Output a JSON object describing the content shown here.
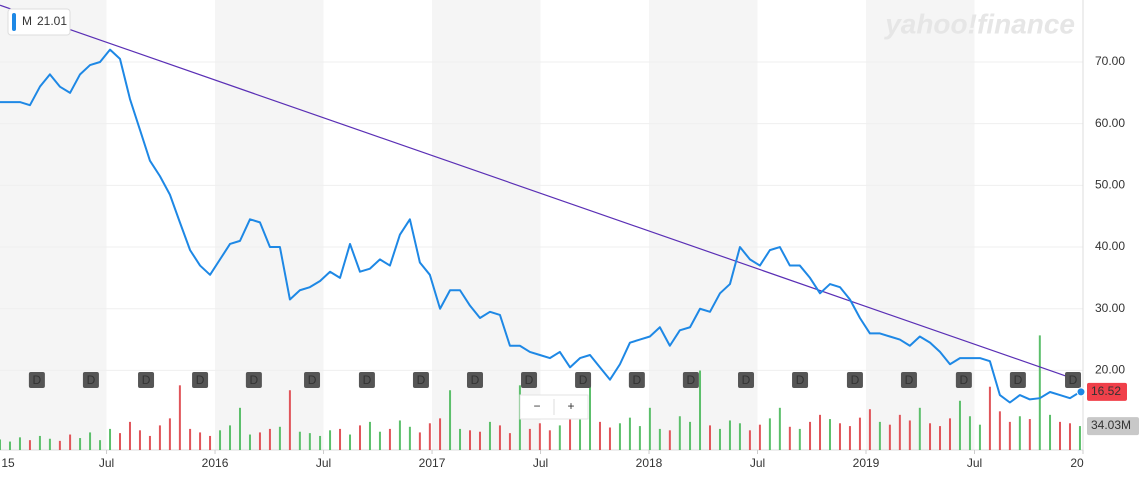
{
  "chart_data": {
    "type": "line",
    "watermark": "yahoo!finance",
    "legend_value": 21.01,
    "xlim": [
      2015.009,
      2020.0
    ],
    "xticks": [
      {
        "value": 2015,
        "label": "15"
      },
      {
        "value": 2015.5,
        "label": "Jul"
      },
      2016,
      {
        "value": 2016.5,
        "label": "Jul"
      },
      2017,
      {
        "value": 2017.5,
        "label": "Jul"
      },
      2018,
      {
        "value": 2018.5,
        "label": "Jul"
      },
      2019,
      {
        "value": 2019.5,
        "label": "Jul"
      },
      {
        "value": 2020,
        "label": "20"
      }
    ],
    "ylim": [
      7.1,
      80.05
    ],
    "yticks": [
      {
        "value": 20,
        "label": "20.00"
      },
      {
        "value": 30,
        "label": "30.00"
      },
      {
        "value": 40,
        "label": "40.00"
      },
      {
        "value": 50,
        "label": "50.00"
      },
      {
        "value": 60,
        "label": "60.00"
      },
      {
        "value": 70,
        "label": "70.00"
      }
    ],
    "y2lim": [
      0,
      640
    ],
    "grid": true,
    "x": [
      2015.009,
      2015.055,
      2015.101,
      2015.147,
      2015.193,
      2015.239,
      2015.285,
      2015.332,
      2015.378,
      2015.424,
      2015.47,
      2015.516,
      2015.562,
      2015.608,
      2015.654,
      2015.7,
      2015.746,
      2015.792,
      2015.838,
      2015.885,
      2015.931,
      2015.977,
      2016.023,
      2016.069,
      2016.115,
      2016.161,
      2016.207,
      2016.253,
      2016.299,
      2016.345,
      2016.391,
      2016.437,
      2016.484,
      2016.53,
      2016.576,
      2016.622,
      2016.668,
      2016.714,
      2016.76,
      2016.806,
      2016.852,
      2016.898,
      2016.944,
      2016.99,
      2017.037,
      2017.083,
      2017.129,
      2017.175,
      2017.221,
      2017.267,
      2017.313,
      2017.359,
      2017.405,
      2017.451,
      2017.497,
      2017.543,
      2017.589,
      2017.636,
      2017.682,
      2017.728,
      2017.774,
      2017.82,
      2017.866,
      2017.912,
      2017.958,
      2018.004,
      2018.05,
      2018.096,
      2018.142,
      2018.189,
      2018.235,
      2018.281,
      2018.327,
      2018.373,
      2018.419,
      2018.465,
      2018.511,
      2018.557,
      2018.603,
      2018.649,
      2018.695,
      2018.742,
      2018.788,
      2018.834,
      2018.88,
      2018.926,
      2018.972,
      2019.018,
      2019.064,
      2019.11,
      2019.156,
      2019.202,
      2019.248,
      2019.295,
      2019.341,
      2019.387,
      2019.433,
      2019.479,
      2019.525,
      2019.571,
      2019.617,
      2019.663,
      2019.709,
      2019.755,
      2019.801,
      2019.848,
      2019.894,
      2019.94,
      2019.986
    ],
    "series": [
      {
        "name": "M",
        "color": "#1e88e5",
        "values": [
          63.5,
          63.5,
          63.5,
          63,
          66,
          68,
          66,
          65,
          68,
          69.5,
          70,
          72,
          70.5,
          64,
          59,
          54,
          51.5,
          48.5,
          44,
          39.5,
          37,
          35.5,
          38,
          40.5,
          41,
          44.5,
          44,
          40,
          40,
          31.5,
          33,
          33.5,
          34.5,
          36,
          35,
          40.5,
          36,
          36.5,
          38,
          37,
          42,
          44.5,
          37.5,
          35.5,
          30,
          33,
          33,
          30.5,
          28.5,
          29.5,
          29,
          24,
          24,
          23,
          22.5,
          22,
          23,
          20.5,
          22,
          22.5,
          20.5,
          18.5,
          21,
          24.5,
          25,
          25.5,
          27,
          24,
          26.5,
          27,
          30,
          29.5,
          32.5,
          34,
          40,
          38,
          37,
          39.5,
          40,
          37,
          37,
          35,
          32.5,
          34,
          33.5,
          31.5,
          28.5,
          26,
          26,
          25.5,
          25,
          24,
          25.5,
          24.5,
          23,
          21,
          22,
          22,
          22,
          21.5,
          16,
          14.8,
          16,
          15.3,
          15.5,
          16.5,
          16,
          15.5,
          16.5
        ]
      },
      {
        "name": "Volume",
        "axis": "y2",
        "up_color": "#5cbf6b",
        "down_color": "#e0555a",
        "values": [
          15,
          12,
          18,
          14,
          20,
          16,
          13,
          22,
          17,
          25,
          14,
          30,
          24,
          40,
          28,
          20,
          35,
          45,
          92,
          30,
          25,
          20,
          28,
          35,
          60,
          22,
          25,
          30,
          33,
          85,
          26,
          24,
          20,
          28,
          30,
          22,
          35,
          40,
          26,
          30,
          42,
          33,
          25,
          38,
          45,
          85,
          30,
          28,
          26,
          40,
          35,
          24,
          92,
          30,
          38,
          28,
          35,
          55,
          60,
          106,
          40,
          32,
          38,
          46,
          34,
          60,
          30,
          28,
          48,
          40,
          113,
          35,
          30,
          42,
          38,
          28,
          36,
          45,
          60,
          33,
          30,
          40,
          50,
          44,
          38,
          34,
          46,
          58,
          40,
          36,
          50,
          42,
          60,
          38,
          34,
          45,
          70,
          48,
          36,
          90,
          55,
          40,
          48,
          44,
          163,
          50,
          40,
          38,
          34.03
        ]
      }
    ],
    "trendline": {
      "x": [
        2015.009,
        2019.986
      ],
      "values": [
        79.2,
        18.3
      ],
      "color": "#5a2fb5"
    },
    "dividends": {
      "label": "D",
      "x": [
        2015.179,
        2015.428,
        2015.682,
        2015.931,
        2016.179,
        2016.447,
        2016.7,
        2016.949,
        2017.198,
        2017.447,
        2017.696,
        2017.944,
        2018.193,
        2018.447,
        2018.696,
        2018.949,
        2019.198,
        2019.451,
        2019.7,
        2019.954
      ]
    },
    "last_price": {
      "value": 16.52,
      "color": "#f0404a"
    },
    "last_volume": {
      "value": 34.03,
      "label": "34.03M"
    },
    "zoom_controls": [
      "−",
      "+"
    ]
  }
}
